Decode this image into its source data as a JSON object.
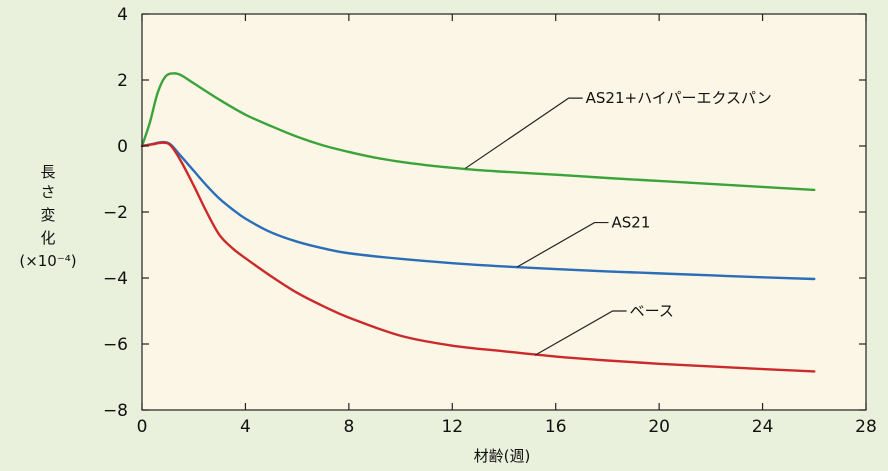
{
  "chart_data": {
    "type": "line",
    "xlabel": "材齢(週)",
    "ylabel_lines": [
      "長",
      "さ",
      "変",
      "化"
    ],
    "ylabel_unit": "(×10⁻⁴)",
    "xlim": [
      0,
      28
    ],
    "ylim": [
      -8,
      4
    ],
    "x_ticks": [
      0,
      4,
      8,
      12,
      16,
      20,
      24,
      28
    ],
    "y_ticks": [
      4,
      2,
      0,
      -2,
      -4,
      -6,
      -8
    ],
    "x_tick_labels": [
      "0",
      "4",
      "8",
      "12",
      "16",
      "20",
      "24",
      "28"
    ],
    "y_tick_labels": [
      "4",
      "2",
      "0",
      "−2",
      "−4",
      "−6",
      "−8"
    ],
    "grid": false,
    "background": "#fbf6e6",
    "page_background": "#e9f1dc",
    "series": [
      {
        "name": "AS21+ハイパーエクスパン",
        "color": "#3aa33a",
        "x": [
          0,
          0.3,
          0.6,
          0.9,
          1.2,
          1.5,
          2,
          3,
          4,
          5,
          6,
          7,
          8,
          9,
          10,
          11,
          12,
          13,
          14,
          16,
          18,
          20,
          22,
          24,
          26
        ],
        "y": [
          0,
          0.7,
          1.6,
          2.1,
          2.2,
          2.15,
          1.9,
          1.4,
          0.95,
          0.6,
          0.28,
          0.02,
          -0.18,
          -0.35,
          -0.48,
          -0.58,
          -0.66,
          -0.73,
          -0.78,
          -0.87,
          -0.97,
          -1.06,
          -1.15,
          -1.24,
          -1.33
        ]
      },
      {
        "name": "AS21",
        "color": "#2a6db8",
        "x": [
          0,
          0.4,
          0.8,
          1.1,
          1.5,
          2,
          2.5,
          3,
          3.5,
          4,
          5,
          6,
          7,
          8,
          10,
          12,
          14,
          16,
          18,
          20,
          22,
          24,
          26
        ],
        "y": [
          0,
          0.06,
          0.12,
          0.05,
          -0.3,
          -0.75,
          -1.2,
          -1.6,
          -1.92,
          -2.2,
          -2.62,
          -2.9,
          -3.1,
          -3.25,
          -3.42,
          -3.55,
          -3.65,
          -3.73,
          -3.8,
          -3.86,
          -3.92,
          -3.98,
          -4.03
        ]
      },
      {
        "name": "ベース",
        "color": "#cc2a2a",
        "x": [
          0,
          0.4,
          0.8,
          1.1,
          1.5,
          2,
          2.5,
          3,
          3.5,
          4,
          5,
          6,
          7,
          8,
          10,
          12,
          14,
          16,
          18,
          20,
          22,
          24,
          26
        ],
        "y": [
          0,
          0.05,
          0.1,
          0.02,
          -0.45,
          -1.2,
          -2.0,
          -2.7,
          -3.1,
          -3.4,
          -3.95,
          -4.45,
          -4.85,
          -5.2,
          -5.75,
          -6.05,
          -6.22,
          -6.38,
          -6.5,
          -6.6,
          -6.68,
          -6.76,
          -6.83
        ]
      }
    ],
    "annotations": [
      {
        "text": "AS21+ハイパーエクスパン",
        "series": "AS21+ハイパーエクスパン",
        "point_x": 12.5,
        "point_y": -0.68,
        "label_x": 16.5,
        "label_y": 1.45
      },
      {
        "text": "AS21",
        "series": "AS21",
        "point_x": 14.5,
        "point_y": -3.67,
        "label_x": 17.5,
        "label_y": -2.32
      },
      {
        "text": "ベース",
        "series": "ベース",
        "point_x": 15.2,
        "point_y": -6.34,
        "label_x": 18.2,
        "label_y": -5.0
      }
    ]
  }
}
